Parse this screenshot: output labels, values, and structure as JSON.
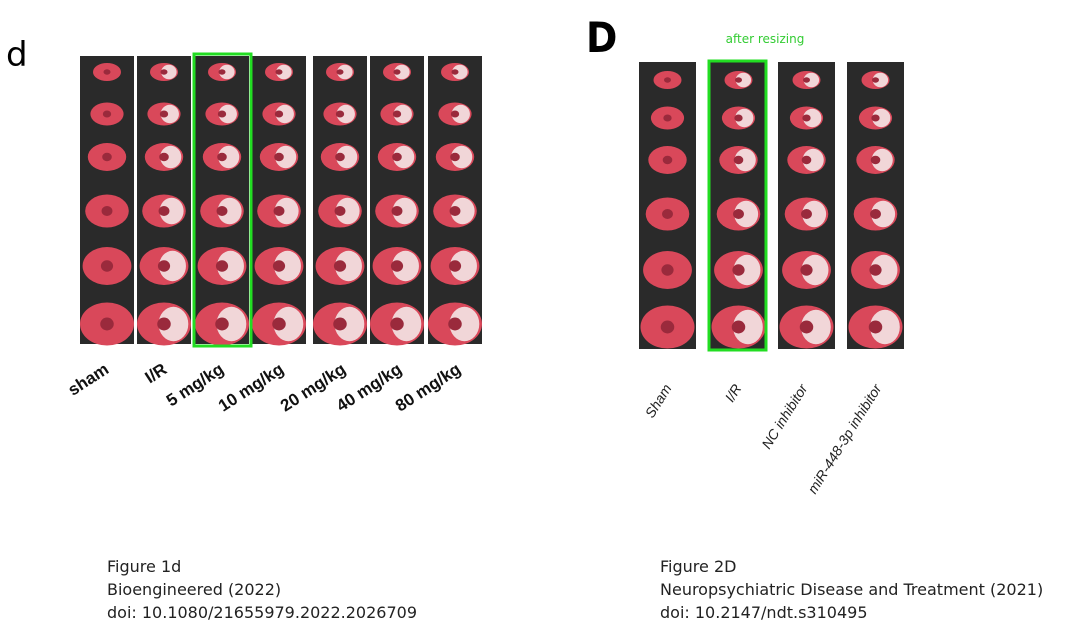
{
  "left_panel": {
    "panel_letter": "d",
    "labels": [
      "sham",
      "I/R",
      "5 mg/kg",
      "10 mg/kg",
      "20 mg/kg",
      "40 mg/kg",
      "80 mg/kg"
    ],
    "caption": [
      "Figure 1d",
      "Bioengineered (2022)",
      "doi: 10.1080/21655979.2022.2026709"
    ]
  },
  "right_panel": {
    "panel_letter": "D",
    "annotation": "after resizing",
    "labels": [
      "Sham",
      "I/R",
      "NC inhibitor",
      "miR-448-3p inhibitor"
    ],
    "caption": [
      "Figure 2D",
      "Neuropsychiatric Disease and Treatment (2021)",
      "doi: 10.2147/ndt.s310495"
    ]
  }
}
